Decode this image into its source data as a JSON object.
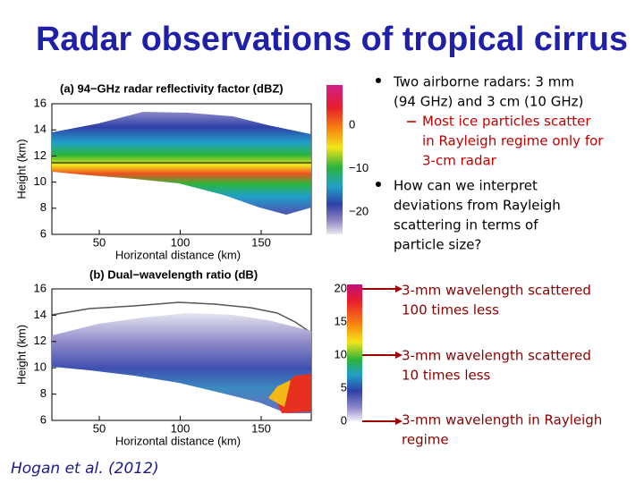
{
  "title": "Radar observations of tropical cirrus",
  "panels": [
    {
      "title": "(a) 94−GHz radar reflectivity factor (dBZ)",
      "y_label": "Height (km)",
      "x_label": "Horizontal distance (km)",
      "yticks": [
        "16",
        "14",
        "12",
        "10",
        "8",
        "6"
      ],
      "xticks": [
        "50",
        "100",
        "150"
      ],
      "colorbar_ticks": [
        "0",
        "−10",
        "−20"
      ]
    },
    {
      "title": "(b) Dual−wavelength ratio (dB)",
      "y_label": "Height (km)",
      "x_label": "Horizontal distance (km)",
      "yticks": [
        "16",
        "14",
        "12",
        "10",
        "8",
        "6"
      ],
      "xticks": [
        "50",
        "100",
        "150"
      ],
      "colorbar_ticks": [
        "20",
        "15",
        "10",
        "5",
        "0"
      ]
    }
  ],
  "bullets": [
    {
      "lines": [
        "Two airborne radars: 3 mm",
        "(94 GHz) and 3 cm (10 GHz)"
      ],
      "sub": [
        {
          "lines": [
            "Most ice particles scatter",
            "in Rayleigh regime only for",
            "3-cm radar"
          ]
        }
      ]
    },
    {
      "lines": [
        "How can we interpret",
        "deviations from Rayleigh",
        "scattering in terms of",
        "particle size?"
      ],
      "sub": []
    }
  ],
  "annotations": [
    {
      "lines": [
        "3-mm wavelength scattered",
        "100 times less"
      ]
    },
    {
      "lines": [
        "3-mm wavelength scattered",
        "10 times less"
      ]
    },
    {
      "lines": [
        "3-mm wavelength in Rayleigh",
        "regime"
      ]
    }
  ],
  "citation": "Hogan et al. (2012)"
}
